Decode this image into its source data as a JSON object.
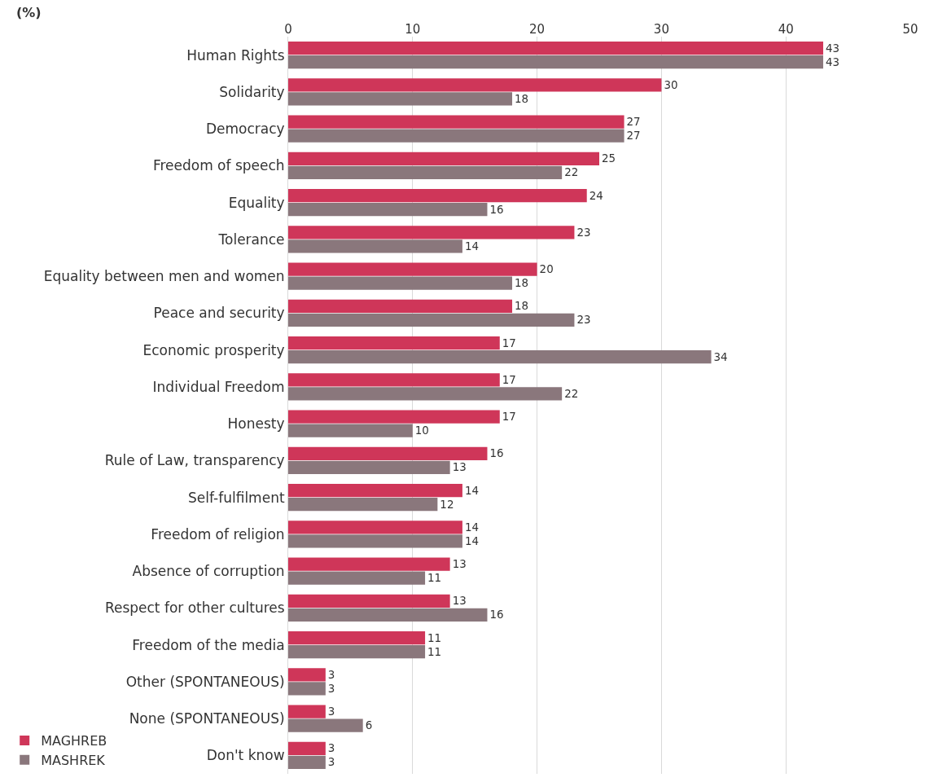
{
  "chart_data": {
    "type": "bar",
    "orientation": "horizontal",
    "annotations": [
      "(%)"
    ],
    "categories": [
      "Human Rights",
      "Solidarity",
      "Democracy",
      "Freedom of speech",
      "Equality",
      "Tolerance",
      "Equality between men and women",
      "Peace and security",
      "Economic prosperity",
      "Individual Freedom",
      "Honesty",
      "Rule of Law, transparency",
      "Self-fulfilment",
      "Freedom of religion",
      "Absence of corruption",
      "Respect for other cultures",
      "Freedom of the media",
      "Other (SPONTANEOUS)",
      "None (SPONTANEOUS)",
      "Don't know"
    ],
    "series": [
      {
        "name": "MAGHREB",
        "color": "#cf3659",
        "values": [
          43,
          30,
          27,
          25,
          24,
          23,
          20,
          18,
          17,
          17,
          17,
          16,
          14,
          14,
          13,
          13,
          11,
          3,
          3,
          3
        ]
      },
      {
        "name": "MASHREK",
        "color": "#8a777c",
        "values": [
          43,
          18,
          27,
          22,
          16,
          14,
          18,
          23,
          34,
          22,
          10,
          13,
          12,
          14,
          11,
          16,
          11,
          3,
          6,
          3
        ]
      }
    ],
    "xlim": [
      0,
      50
    ],
    "xticks": [
      0,
      10,
      20,
      30,
      40,
      50
    ],
    "grid": "x",
    "legend": "bottom left",
    "data_labels": true
  }
}
